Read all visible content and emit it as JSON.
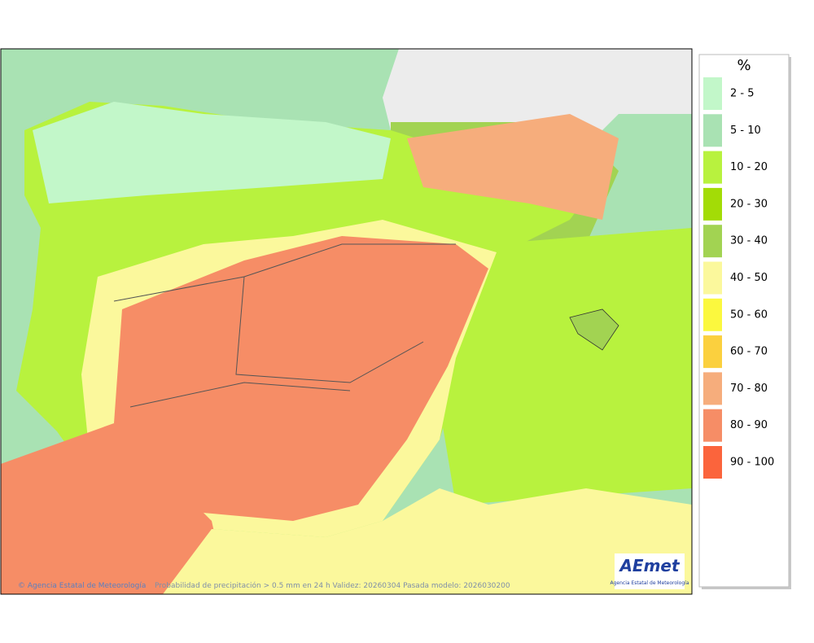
{
  "legend": {
    "title": "%",
    "items": [
      {
        "label": "2 - 5",
        "color": "#c2f7c9"
      },
      {
        "label": "5 - 10",
        "color": "#a9e2b3"
      },
      {
        "label": "10 - 20",
        "color": "#b8f23e"
      },
      {
        "label": "20 - 30",
        "color": "#a3dc06"
      },
      {
        "label": "30 - 40",
        "color": "#a2d352"
      },
      {
        "label": "40 - 50",
        "color": "#fbf89c"
      },
      {
        "label": "50 - 60",
        "color": "#fbf83e"
      },
      {
        "label": "60 - 70",
        "color": "#fbd03e"
      },
      {
        "label": "70 - 80",
        "color": "#f6ad7c"
      },
      {
        "label": "80 - 90",
        "color": "#f68d66"
      },
      {
        "label": "90 - 100",
        "color": "#fb643c"
      }
    ]
  },
  "footer": {
    "credit": "Agencia Estatal de Meteorología",
    "caption": "Probabilidad de precipitación > 0.5 mm en 24 h Validez: 20260304 Pasada modelo: 2026030200"
  },
  "logo": {
    "name": "AEmet",
    "subtitle": "Agencia Estatal de Meteorología"
  }
}
